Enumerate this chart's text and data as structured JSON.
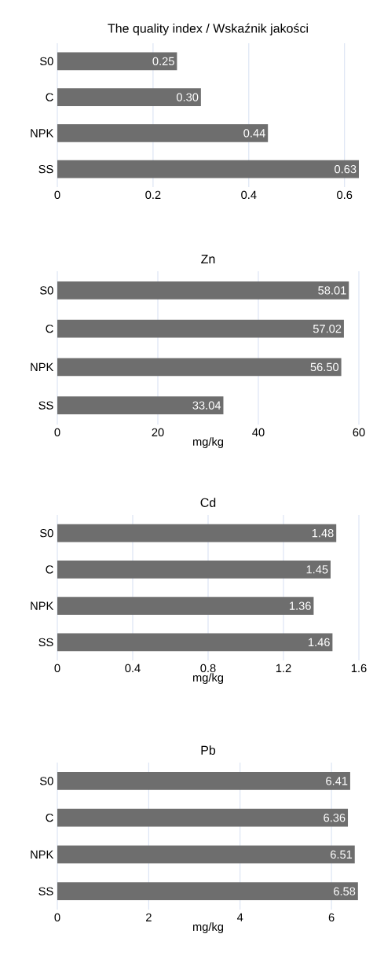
{
  "chart_data": [
    {
      "type": "bar",
      "orientation": "horizontal",
      "title": "The quality index / Wskaźnik jakości",
      "categories": [
        "S0",
        "C",
        "NPK",
        "SS"
      ],
      "values": [
        0.25,
        0.3,
        0.44,
        0.63
      ],
      "value_labels": [
        "0.25",
        "0.30",
        "0.44",
        "0.63"
      ],
      "color": "#6e6e6e",
      "xlim": [
        0,
        0.63
      ],
      "xticks": [
        0,
        0.2,
        0.4,
        0.6
      ],
      "grid": "x"
    },
    {
      "type": "bar",
      "orientation": "horizontal",
      "title": "Zn",
      "xlabel": "mg/kg",
      "categories": [
        "S0",
        "C",
        "NPK",
        "SS"
      ],
      "values": [
        58.01,
        57.02,
        56.5,
        33.04
      ],
      "value_labels": [
        "58.01",
        "57.02",
        "56.50",
        "33.04"
      ],
      "color": "#6e6e6e",
      "xlim": [
        0,
        60
      ],
      "xticks": [
        0,
        20,
        40,
        60
      ],
      "grid": "x"
    },
    {
      "type": "bar",
      "orientation": "horizontal",
      "title": "Cd",
      "xlabel": "mg/kg",
      "categories": [
        "S0",
        "C",
        "NPK",
        "SS"
      ],
      "values": [
        1.48,
        1.45,
        1.36,
        1.46
      ],
      "value_labels": [
        "1.48",
        "1.45",
        "1.36",
        "1.46"
      ],
      "color": "#6e6e6e",
      "xlim": [
        0,
        1.6
      ],
      "xticks": [
        0,
        0.4,
        0.8,
        1.2,
        1.6
      ],
      "grid": "x"
    },
    {
      "type": "bar",
      "orientation": "horizontal",
      "title": "Pb",
      "xlabel": "mg/kg",
      "categories": [
        "S0",
        "C",
        "NPK",
        "SS"
      ],
      "values": [
        6.41,
        6.36,
        6.51,
        6.58
      ],
      "value_labels": [
        "6.41",
        "6.36",
        "6.51",
        "6.58"
      ],
      "color": "#6e6e6e",
      "xlim": [
        0,
        6.6
      ],
      "xticks": [
        0,
        2,
        4,
        6
      ],
      "grid": "x"
    }
  ]
}
